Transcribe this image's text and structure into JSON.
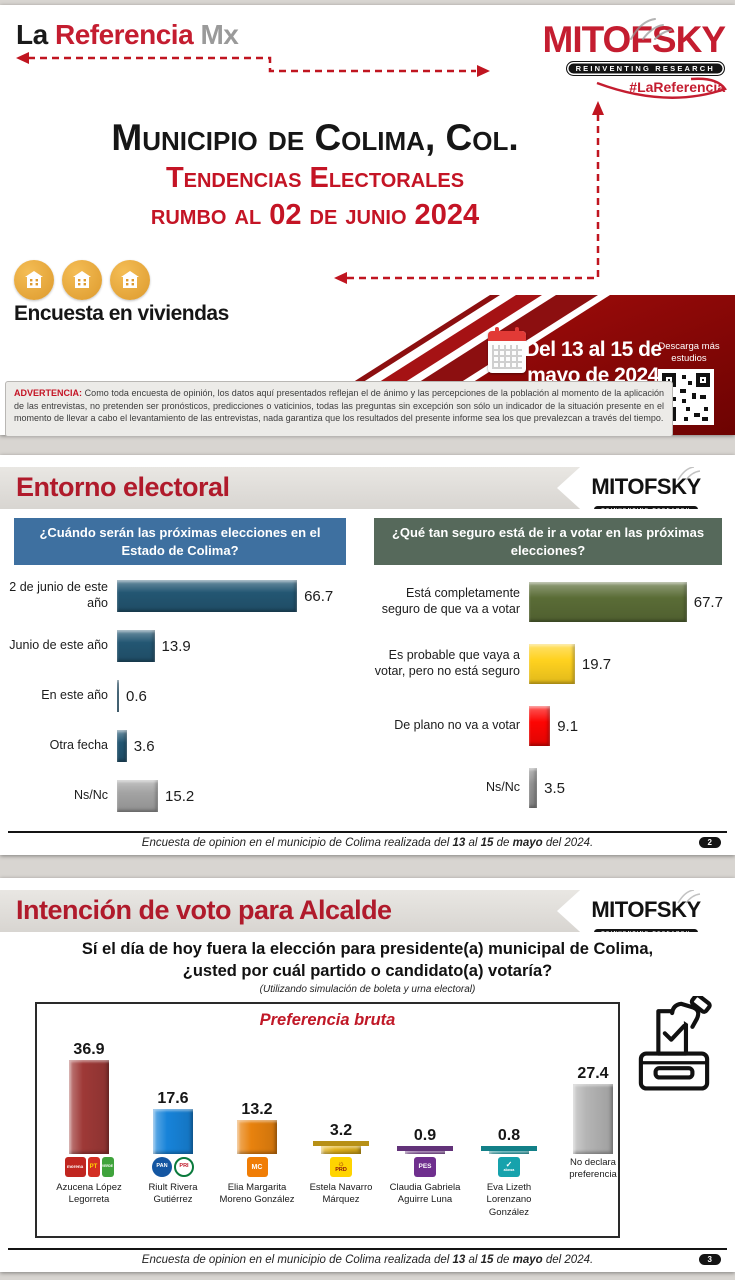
{
  "brand": {
    "la": "La",
    "referencia": "Referencia",
    "mx": "Mx"
  },
  "mitofsky": {
    "name": "MITOFSKY",
    "tagline": "REINVENTING RESEARCH",
    "hashtag": "#LaReferencia"
  },
  "cover": {
    "title": "Municipio de Colima, Col.",
    "subtitle": "Tendencias Electorales",
    "subtitle2": "rumbo al 02 de junio 2024",
    "method": "Encuesta en viviendas",
    "date_range": "Del 13 al 15 de mayo de 2024",
    "download": "Descarga más estudios",
    "warning_label": "ADVERTENCIA:",
    "warning_text": " Como toda encuesta de opinión, los datos aquí presentados reflejan el de ánimo y las percepciones de la población al momento de la aplicación de las entrevistas, no pretenden ser pronósticos, predicciones o vaticinios, todas las preguntas sin excepción son sólo un indicador de la situación presente en el momento de llevar a cabo el levantamiento de las entrevistas, nada garantiza que los resultados del presente informe sea los que prevalezcan a través del tiempo."
  },
  "section2": {
    "title": "Entorno electoral",
    "page": "2"
  },
  "section3": {
    "title": "Intención de voto para Alcalde",
    "question_line1": "Sí el día de hoy fuera la elección para presidente(a) municipal de Colima,",
    "question_line2": "¿usted por cuál partido o candidato(a) votaría?",
    "note": "(Utilizando simulación de boleta y urna electoral)",
    "page": "3"
  },
  "footer": {
    "pre": "Encuesta de opinion en el municipio de Colima realizada del ",
    "d1": "13",
    "mid1": " al ",
    "d2": "15",
    "mid2": " de ",
    "month": "mayo",
    "post": " del 2024."
  },
  "chart_data": [
    {
      "type": "bar",
      "orientation": "horizontal",
      "title": "¿Cuándo serán las próximas elecciones en el Estado de Colima?",
      "title_bg": "#3e70a0",
      "categories": [
        "2 de junio de este año",
        "Junio de este año",
        "En este año",
        "Otra fecha",
        "Ns/Nc"
      ],
      "values": [
        66.7,
        13.9,
        0.6,
        3.6,
        15.2
      ],
      "bar_colors": [
        "#235672",
        "#235672",
        "#235672",
        "#235672",
        "#a3a3a3"
      ],
      "xlim": [
        0,
        75
      ],
      "value_labels": true,
      "grid": false
    },
    {
      "type": "bar",
      "orientation": "horizontal",
      "title": "¿Qué tan seguro está de ir a votar en las próximas elecciones?",
      "title_bg": "#56695b",
      "categories": [
        "Está completamente seguro de que va a votar",
        "Es probable que vaya a votar, pero no está seguro",
        "De plano no va a votar",
        "Ns/Nc"
      ],
      "values": [
        67.7,
        19.7,
        9.1,
        3.5
      ],
      "bar_colors": [
        "#5a6c36",
        "#ffd21f",
        "#fd0503",
        "#919191"
      ],
      "xlim": [
        0,
        75
      ],
      "value_labels": true,
      "grid": false
    },
    {
      "type": "bar",
      "orientation": "vertical",
      "title": "Preferencia bruta",
      "categories": [
        "Azucena López Legorreta",
        "Riult Rivera Gutiérrez",
        "Elia Margarita Moreno González",
        "Estela Navarro Márquez",
        "Claudia Gabriela Aguirre Luna",
        "Eva Lizeth Lorenzano González",
        "No declara preferencia"
      ],
      "values": [
        36.9,
        17.6,
        13.2,
        3.2,
        0.9,
        0.8,
        27.4
      ],
      "bar_colors": [
        "#9e3937",
        "#1783d9",
        "#e8820e",
        "#e5b41b",
        "#7b3f97",
        "#17a0aa",
        "#b4b4b4"
      ],
      "ylim": [
        0,
        40
      ],
      "value_labels": true,
      "grid": false,
      "parties": [
        [
          {
            "label": "morena",
            "bg": "#c0251f",
            "fg": "#ffffff",
            "w": 21,
            "fs": 4.5
          },
          {
            "label": "PT",
            "bg": "#d32f23",
            "fg": "#ffd400",
            "w": 12,
            "fs": 6
          },
          {
            "label": "VERDE",
            "bg": "#3fa33c",
            "fg": "#ffffff",
            "w": 12,
            "fs": 3.2
          }
        ],
        [
          {
            "label": "PAN",
            "bg": "#1456a2",
            "fg": "#ffffff",
            "w": 20,
            "fs": 5.5,
            "shape": "circle"
          },
          {
            "label": "PRI",
            "bg": "#ffffff",
            "fg": "#c01a2b",
            "w": 20,
            "fs": 5.5,
            "shape": "circle",
            "border": "#0a7a3c"
          }
        ],
        [
          {
            "label": "MC",
            "bg": "#f07d05",
            "fg": "#ffffff",
            "w": 21,
            "fs": 7
          }
        ],
        [
          {
            "icon": "☼",
            "label": "PRD",
            "bg": "#ffd400",
            "fg": "#8a1010",
            "w": 22,
            "fs": 5.5
          }
        ],
        [
          {
            "label": "PES",
            "bg": "#6f2f8e",
            "fg": "#ffffff",
            "w": 22,
            "fs": 6.5
          }
        ],
        [
          {
            "icon": "✓",
            "label": "alianza",
            "bg": "#16a2ac",
            "fg": "#ffffff",
            "w": 22,
            "fs": 3.2
          }
        ],
        []
      ]
    }
  ]
}
